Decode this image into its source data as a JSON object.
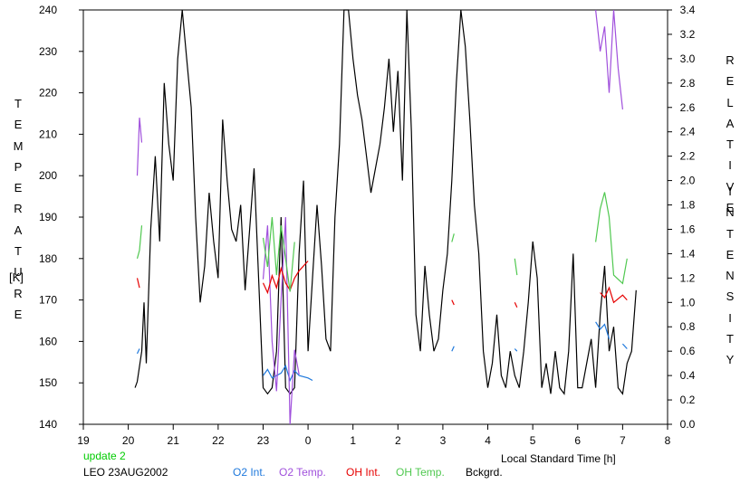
{
  "header_date": "LEO 23AUG2002",
  "update_text": "update 2",
  "y_left_label_letters": [
    "T",
    "E",
    "M",
    "P",
    "E",
    "R",
    "A",
    "T",
    "U",
    "R",
    "E"
  ],
  "y_left_unit": "[K]",
  "y_right_label_letters_1": [
    "R",
    "E",
    "L",
    "A",
    "T",
    "I",
    "V",
    "E"
  ],
  "y_right_label_letters_2": [
    "I",
    "N",
    "T",
    "E",
    "N",
    "S",
    "I",
    "T",
    "Y"
  ],
  "colors": {
    "o2_int": "#1e78dc",
    "o2_temp": "#a050dc",
    "oh_int": "#e60000",
    "oh_temp": "#50c850",
    "background": "#000000",
    "update_text": "#00cc00"
  },
  "chart_data": {
    "type": "line",
    "xlabel": "Local Standard Time [h]",
    "x_ticks": [
      "19",
      "20",
      "21",
      "22",
      "23",
      "0",
      "1",
      "2",
      "3",
      "4",
      "5",
      "6",
      "7",
      "8"
    ],
    "x_range_hours": [
      19,
      32
    ],
    "y_left": {
      "range": [
        140,
        240
      ],
      "ticks": [
        140,
        150,
        160,
        170,
        180,
        190,
        200,
        210,
        220,
        230,
        240
      ]
    },
    "y_right": {
      "range": [
        0.0,
        3.4
      ],
      "ticks": [
        "0.0",
        "0.2",
        "0.4",
        "0.6",
        "0.8",
        "1.0",
        "1.2",
        "1.4",
        "1.6",
        "1.8",
        "2.0",
        "2.2",
        "2.4",
        "2.6",
        "2.8",
        "3.0",
        "3.2",
        "3.4"
      ]
    },
    "legend": [
      "O2 Int.",
      "O2 Temp.",
      "OH Int.",
      "OH Temp.",
      "Bckgrd."
    ],
    "series": [
      {
        "name": "Bckgrd.",
        "axis": "right",
        "color": "#000000",
        "x": [
          20.15,
          20.2,
          20.3,
          20.35,
          20.4,
          20.5,
          20.6,
          20.7,
          20.8,
          20.9,
          21.0,
          21.1,
          21.2,
          21.3,
          21.4,
          21.5,
          21.6,
          21.7,
          21.8,
          21.9,
          22.0,
          22.1,
          22.2,
          22.3,
          22.4,
          22.5,
          22.6,
          22.7,
          22.8,
          22.9,
          23.0,
          23.1,
          23.2,
          23.3,
          23.4,
          23.5,
          23.6,
          23.7,
          23.8,
          23.9,
          24.0,
          24.1,
          24.2,
          24.3,
          24.4,
          24.5,
          24.6,
          24.7,
          24.8,
          24.9,
          25.0,
          25.1,
          25.2,
          25.3,
          25.4,
          25.5,
          25.6,
          25.7,
          25.8,
          25.9,
          26.0,
          26.1,
          26.2,
          26.3,
          26.4,
          26.5,
          26.6,
          26.7,
          26.8,
          26.9,
          27.0,
          27.1,
          27.2,
          27.3,
          27.4,
          27.5,
          27.6,
          27.7,
          27.8,
          27.9,
          28.0,
          28.1,
          28.2,
          28.3,
          28.4,
          28.5,
          28.6,
          28.7,
          28.8,
          28.9,
          29.0,
          29.1,
          29.2,
          29.3,
          29.4,
          29.5,
          29.6,
          29.7,
          29.8,
          29.9,
          30.0,
          30.1,
          30.2,
          30.3,
          30.4,
          30.5,
          30.6,
          30.7,
          30.8,
          30.9,
          31.0,
          31.1,
          31.2,
          31.3
        ],
        "values": [
          0.3,
          0.35,
          0.6,
          1.0,
          0.5,
          1.6,
          2.2,
          1.5,
          2.8,
          2.3,
          2.0,
          3.0,
          3.4,
          3.0,
          2.6,
          1.7,
          1.0,
          1.3,
          1.9,
          1.5,
          1.2,
          2.5,
          2.0,
          1.6,
          1.5,
          1.8,
          1.1,
          1.6,
          2.1,
          1.2,
          0.3,
          0.25,
          0.3,
          0.6,
          1.7,
          0.3,
          0.25,
          0.3,
          1.4,
          2.0,
          0.6,
          1.2,
          1.8,
          1.3,
          0.7,
          0.6,
          1.7,
          2.3,
          3.4,
          3.4,
          3.0,
          2.7,
          2.5,
          2.2,
          1.9,
          2.1,
          2.3,
          2.6,
          3.0,
          2.4,
          2.9,
          2.0,
          3.4,
          2.4,
          0.9,
          0.6,
          1.3,
          0.9,
          0.6,
          0.7,
          1.1,
          1.4,
          2.0,
          2.8,
          3.4,
          3.1,
          2.5,
          1.8,
          1.4,
          0.6,
          0.3,
          0.5,
          0.9,
          0.4,
          0.3,
          0.6,
          0.4,
          0.3,
          0.6,
          1.0,
          1.5,
          1.2,
          0.3,
          0.5,
          0.25,
          0.6,
          0.3,
          0.25,
          0.6,
          1.4,
          0.3,
          0.3,
          0.5,
          0.7,
          0.3,
          0.9,
          1.3,
          0.6,
          0.8,
          0.3,
          0.25,
          0.5,
          0.6,
          1.1
        ]
      },
      {
        "name": "O2 Int.",
        "axis": "right",
        "color": "#1e78dc",
        "x": [
          20.2,
          20.25,
          23.0,
          23.1,
          23.2,
          23.4,
          23.5,
          23.6,
          23.7,
          23.8,
          24.0,
          24.1,
          27.2,
          27.25,
          28.6,
          28.65,
          30.4,
          30.5,
          30.6,
          30.7,
          31.0,
          31.1
        ],
        "values": [
          0.58,
          0.62,
          0.4,
          0.45,
          0.38,
          0.42,
          0.48,
          0.36,
          0.44,
          0.4,
          0.38,
          0.36,
          0.6,
          0.64,
          0.62,
          0.6,
          0.84,
          0.78,
          0.82,
          0.7,
          0.66,
          0.62
        ]
      },
      {
        "name": "O2 Temp.",
        "axis": "left",
        "color": "#a050dc",
        "x": [
          20.2,
          20.25,
          20.3,
          23.0,
          23.1,
          23.2,
          23.3,
          23.4,
          23.5,
          23.6,
          23.7,
          23.8,
          30.4,
          30.5,
          30.6,
          30.7,
          30.8,
          30.9,
          31.0
        ],
        "values": [
          200,
          214,
          208,
          175,
          188,
          160,
          148,
          170,
          190,
          140,
          158,
          152,
          240,
          230,
          236,
          220,
          240,
          226,
          216
        ]
      },
      {
        "name": "OH Int.",
        "axis": "right",
        "color": "#e60000",
        "x": [
          20.2,
          20.25,
          23.0,
          23.1,
          23.2,
          23.3,
          23.4,
          23.5,
          23.6,
          23.7,
          23.8,
          24.0,
          27.2,
          27.25,
          28.6,
          28.65,
          30.5,
          30.6,
          30.7,
          30.8,
          31.0,
          31.1
        ],
        "values": [
          1.2,
          1.12,
          1.16,
          1.08,
          1.22,
          1.12,
          1.28,
          1.16,
          1.1,
          1.2,
          1.26,
          1.34,
          1.02,
          0.98,
          1.0,
          0.96,
          1.08,
          1.04,
          1.12,
          1.0,
          1.06,
          1.02
        ]
      },
      {
        "name": "OH Temp.",
        "axis": "left",
        "color": "#50c850",
        "x": [
          20.2,
          20.25,
          20.3,
          23.0,
          23.1,
          23.2,
          23.3,
          23.4,
          23.5,
          23.6,
          23.7,
          27.2,
          27.25,
          28.6,
          28.65,
          30.4,
          30.5,
          30.6,
          30.7,
          30.8,
          31.0,
          31.1
        ],
        "values": [
          180,
          182,
          188,
          185,
          178,
          190,
          176,
          188,
          180,
          172,
          184,
          184,
          186,
          180,
          176,
          184,
          192,
          196,
          190,
          176,
          174,
          180
        ]
      }
    ]
  }
}
